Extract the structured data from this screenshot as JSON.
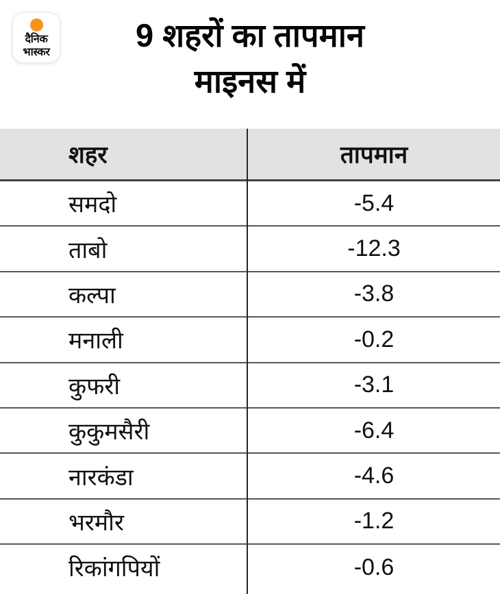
{
  "logo": {
    "line1": "दैनिक",
    "line2": "भास्कर"
  },
  "title": {
    "line1": "9 शहरों का तापमान",
    "line2": "माइनस में"
  },
  "table": {
    "columns": [
      "शहर",
      "तापमान"
    ],
    "rows": [
      {
        "city": "समदो",
        "temperature": "-5.4"
      },
      {
        "city": "ताबो",
        "temperature": "-12.3"
      },
      {
        "city": "कल्पा",
        "temperature": "-3.8"
      },
      {
        "city": "मनाली",
        "temperature": "-0.2"
      },
      {
        "city": "कुफरी",
        "temperature": "-3.1"
      },
      {
        "city": "कुकुमसैरी",
        "temperature": "-6.4"
      },
      {
        "city": "नारकंडा",
        "temperature": "-4.6"
      },
      {
        "city": "भरमौर",
        "temperature": "-1.2"
      },
      {
        "city": "रिकांगपियों",
        "temperature": "-0.6"
      }
    ]
  },
  "colors": {
    "brand_orange": "#F4941D",
    "header_bg": "#E2E2E2",
    "divider": "#4A4A4A",
    "text": "#111111"
  },
  "chart_data": {
    "type": "table",
    "title": "9 शहरों का तापमान माइनस में",
    "columns": [
      "शहर",
      "तापमान"
    ],
    "rows": [
      [
        "समदो",
        -5.4
      ],
      [
        "ताबो",
        -12.3
      ],
      [
        "कल्पा",
        -3.8
      ],
      [
        "मनाली",
        -0.2
      ],
      [
        "कुफरी",
        -3.1
      ],
      [
        "कुकुमसैरी",
        -6.4
      ],
      [
        "नारकंडा",
        -4.6
      ],
      [
        "भरमौर",
        -1.2
      ],
      [
        "रिकांगपियों",
        -0.6
      ]
    ]
  }
}
